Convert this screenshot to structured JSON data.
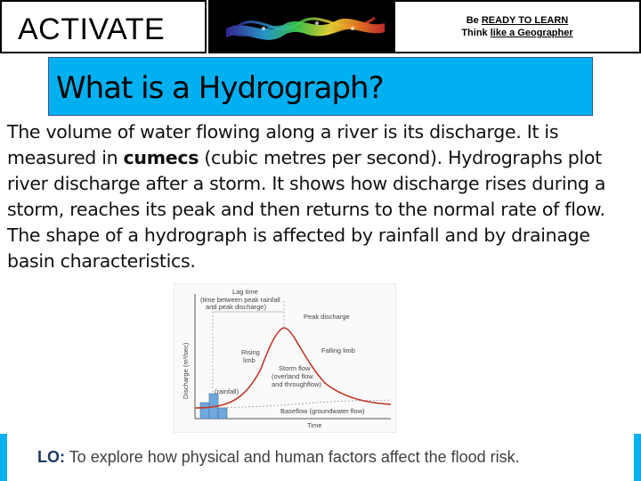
{
  "header": {
    "activate_label": "ACTIVATE",
    "ready_prefix": "Be ",
    "ready_link": "READY TO LEARN",
    "think_prefix": "Think ",
    "think_link": "like a Geographer"
  },
  "title": "What is a Hydrograph?",
  "body": {
    "part1": "The volume of water flowing along a river is its discharge. It is measured in ",
    "bold": "cumecs",
    "part2": " (cubic metres per second). Hydrographs plot river discharge after a storm. It shows how discharge rises during a storm, reaches its peak and then returns to the normal rate of flow. The shape of a hydrograph is affected by rainfall and by drainage basin characteristics."
  },
  "diagram": {
    "lag_time_label": "Lag time",
    "lag_time_sub1": "(time between peak rainfall",
    "lag_time_sub2": "and peak discharge)",
    "peak_discharge": "Peak discharge",
    "rising_limb_1": "Rising",
    "rising_limb_2": "limb",
    "falling_limb": "Falling limb",
    "storm_flow_1": "Storm flow",
    "storm_flow_2": "(overland flow",
    "storm_flow_3": "and throughflow)",
    "rainfall": "(rainfall)",
    "baseflow": "Baseflow (groundwater flow)",
    "y_axis": "Discharge (m³/sec)",
    "x_axis": "Time"
  },
  "lo": {
    "label": "LO:",
    "text": " To explore how physical and human factors affect the flood risk."
  },
  "colors": {
    "accent": "#00b0f0",
    "curve": "#c0392b",
    "rain": "#6fa8dc"
  }
}
